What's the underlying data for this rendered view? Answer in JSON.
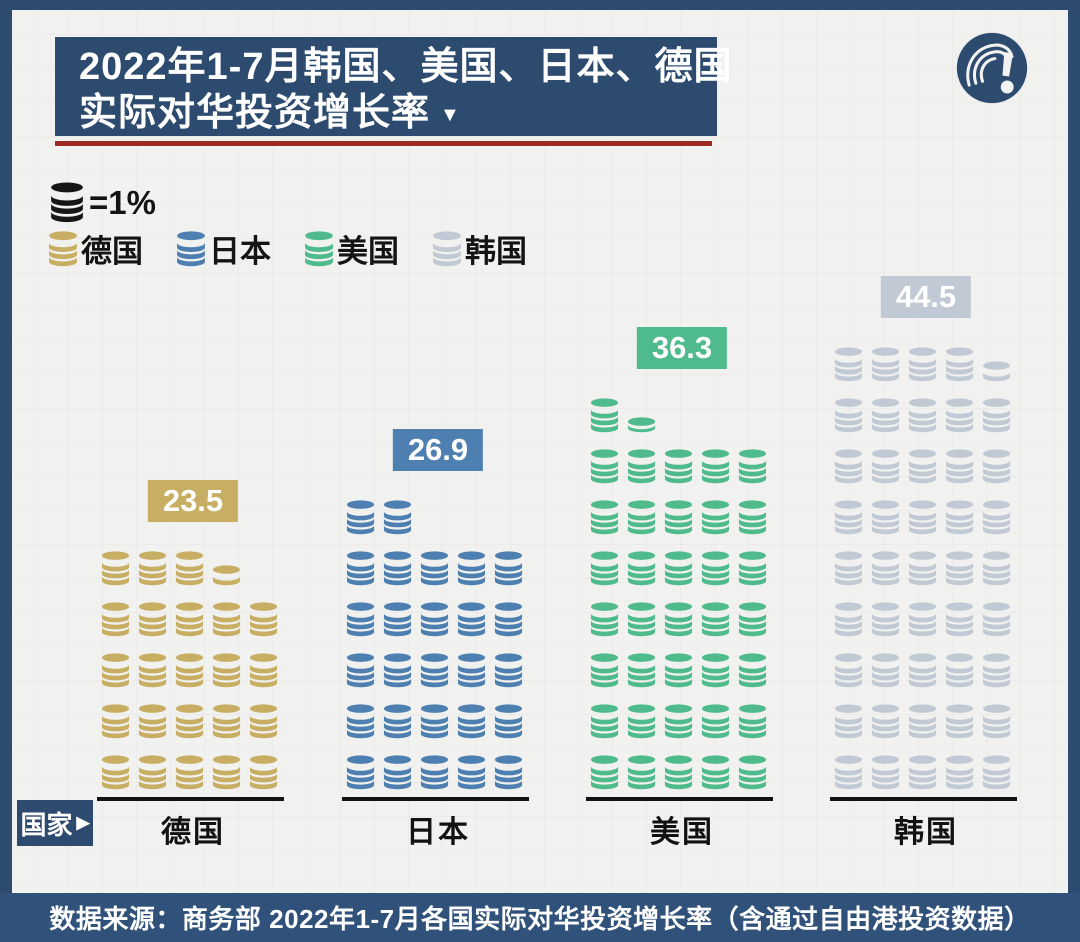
{
  "page": {
    "background_color": "#f1f1ef",
    "frame_color": "#2d4b6f"
  },
  "header": {
    "title_line1": "2022年1-7月韩国、美国、日本、德国",
    "title_line2": "实际对华投资增长率",
    "title_arrow": "▼",
    "banner_color": "#2d4b6f",
    "divider_color": "#9e2b23",
    "logo_icon": "question-exclamation-logo"
  },
  "legend": {
    "unit_coin_icon": "black-coin-stack-icon",
    "unit_label": "=1%",
    "items": [
      {
        "label": "德国",
        "color": "#c7ae63"
      },
      {
        "label": "日本",
        "color": "#4d80b1"
      },
      {
        "label": "美国",
        "color": "#4fbb8d"
      },
      {
        "label": "韩国",
        "color": "#c1cad4"
      }
    ]
  },
  "axis_badge": {
    "label": "国家",
    "arrow": "▶"
  },
  "chart_data": {
    "type": "bar",
    "subtype": "pictogram",
    "title": "2022年1-7月韩国、美国、日本、德国实际对华投资增长率",
    "icon_unit": "1 coin-stack = 1%",
    "icons_per_row": 5,
    "categories": [
      "德国",
      "日本",
      "美国",
      "韩国"
    ],
    "values": [
      23.5,
      26.9,
      36.3,
      44.5
    ],
    "colors": [
      "#c7ae63",
      "#4d80b1",
      "#4fbb8d",
      "#c1cad4"
    ],
    "xlabel": "国家",
    "legend_position": "top-left",
    "grid": false
  },
  "source_bar": {
    "text": "数据来源：商务部 2022年1-7月各国实际对华投资增长率（含通过自由港投资数据）",
    "color": "#30517a"
  }
}
